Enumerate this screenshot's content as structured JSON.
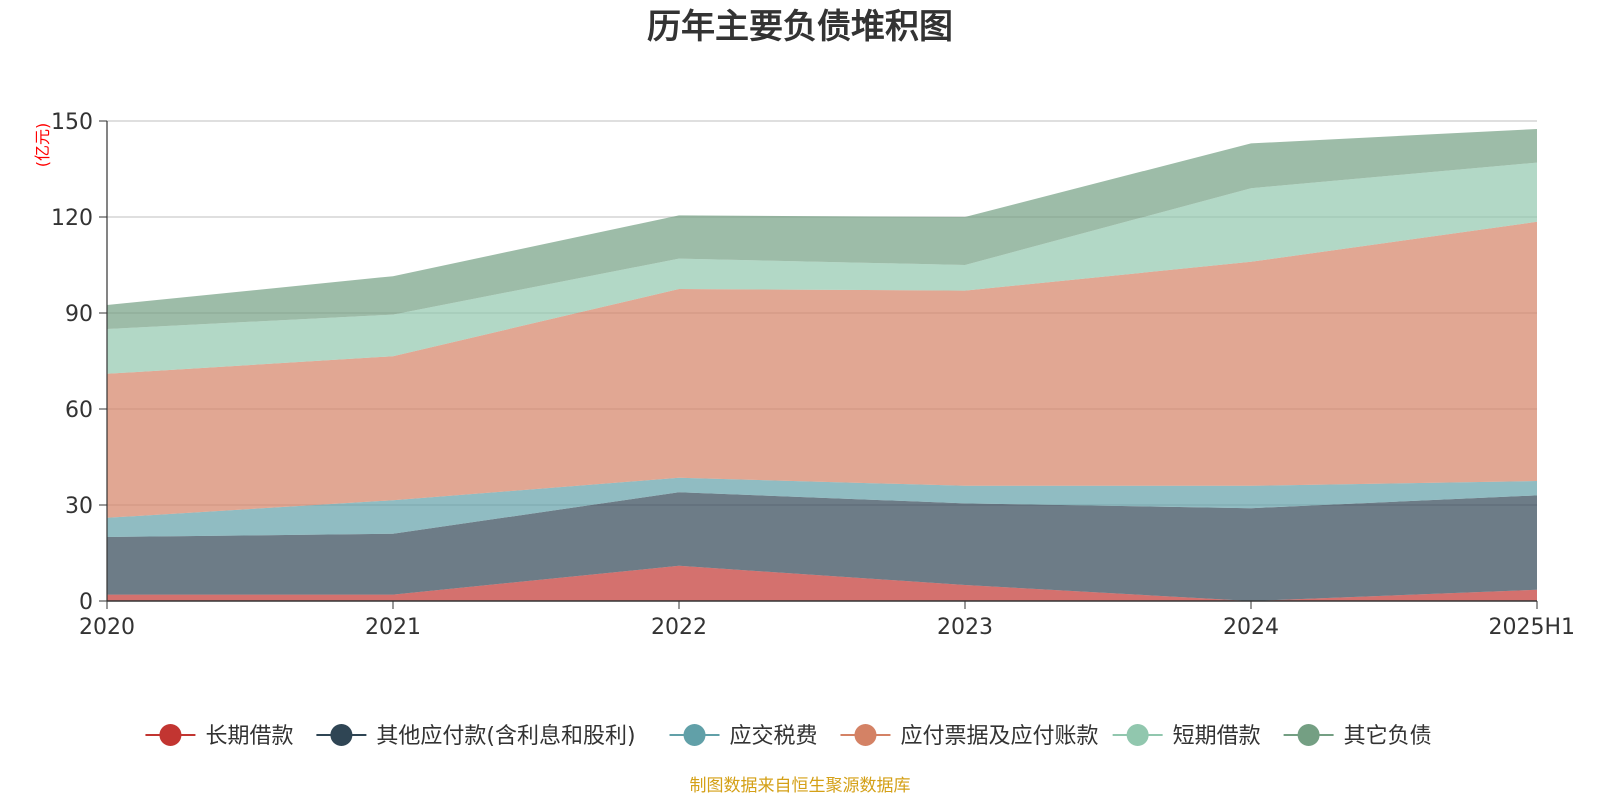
{
  "chart_data": {
    "type": "area",
    "stacked": true,
    "title": "历年主要负债堆积图",
    "yunit": "(亿元)",
    "categories": [
      "2020",
      "2021",
      "2022",
      "2023",
      "2024",
      "2025H1"
    ],
    "ylim": [
      0,
      150
    ],
    "yticks": [
      0,
      30,
      60,
      90,
      120,
      150
    ],
    "grid": true,
    "legend_position": "bottom",
    "series": [
      {
        "name": "长期借款",
        "values": [
          2.0,
          2.0,
          11.0,
          5.0,
          0.0,
          3.5
        ],
        "color": "#c23531"
      },
      {
        "name": "其他应付款(含利息和股利)",
        "values": [
          18.0,
          19.0,
          23.0,
          25.5,
          29.0,
          29.5
        ],
        "color": "#2f4554"
      },
      {
        "name": "应交税费",
        "values": [
          6.0,
          10.5,
          4.5,
          5.5,
          7.0,
          4.5
        ],
        "color": "#61a0a8"
      },
      {
        "name": "应付票据及应付账款",
        "values": [
          45.0,
          45.0,
          59.0,
          61.0,
          70.0,
          81.0
        ],
        "color": "#d48265"
      },
      {
        "name": "短期借款",
        "values": [
          14.0,
          13.0,
          9.5,
          8.0,
          23.0,
          18.5
        ],
        "color": "#91c7ae"
      },
      {
        "name": "其它负债",
        "values": [
          7.5,
          12.0,
          13.5,
          15.0,
          14.0,
          10.5
        ],
        "color": "#749f83"
      }
    ]
  },
  "footer": {
    "source": "制图数据来自恒生聚源数据库"
  }
}
